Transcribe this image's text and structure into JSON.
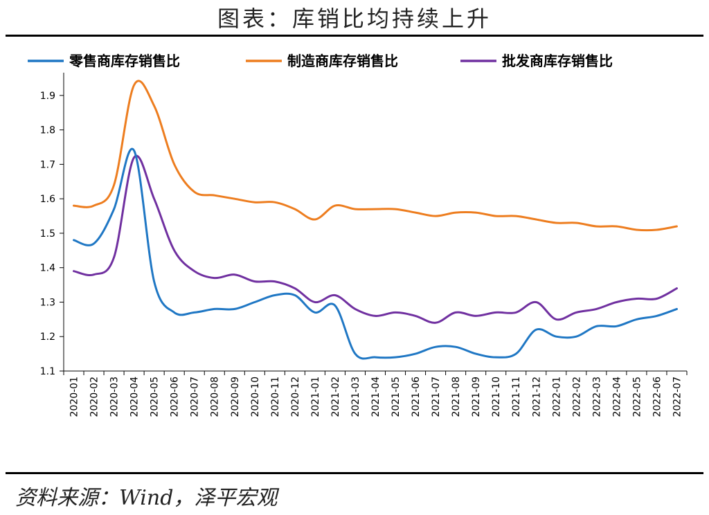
{
  "header": {
    "title": "图表：库销比均持续上升"
  },
  "footer": {
    "source": "资料来源：Wind，泽平宏观"
  },
  "colors": {
    "retail": "#1f77c4",
    "manufacturing": "#ed7d1f",
    "wholesale": "#7030a0"
  },
  "chart_data": {
    "type": "line",
    "title": "图表：库销比均持续上升",
    "xlabel": "",
    "ylabel": "",
    "ylim": [
      1.1,
      1.95
    ],
    "yticks": [
      "1.1",
      "1.2",
      "1.3",
      "1.4",
      "1.5",
      "1.6",
      "1.7",
      "1.8",
      "1.9"
    ],
    "legend_position": "top",
    "grid": false,
    "categories": [
      "2020-01",
      "2020-02",
      "2020-03",
      "2020-04",
      "2020-05",
      "2020-06",
      "2020-07",
      "2020-08",
      "2020-09",
      "2020-10",
      "2020-11",
      "2020-12",
      "2021-01",
      "2021-02",
      "2021-03",
      "2021-04",
      "2021-05",
      "2021-06",
      "2021-07",
      "2021-08",
      "2021-09",
      "2021-10",
      "2021-11",
      "2021-12",
      "2022-01",
      "2022-02",
      "2022-03",
      "2022-04",
      "2022-05",
      "2022-06",
      "2022-07"
    ],
    "series": [
      {
        "name": "零售商库存销售比",
        "color_key": "retail",
        "values": [
          1.48,
          1.47,
          1.57,
          1.74,
          1.36,
          1.27,
          1.27,
          1.28,
          1.28,
          1.3,
          1.32,
          1.32,
          1.27,
          1.29,
          1.15,
          1.14,
          1.14,
          1.15,
          1.17,
          1.17,
          1.15,
          1.14,
          1.15,
          1.22,
          1.2,
          1.2,
          1.23,
          1.23,
          1.25,
          1.26,
          1.28
        ]
      },
      {
        "name": "制造商库存销售比",
        "color_key": "manufacturing",
        "values": [
          1.58,
          1.58,
          1.64,
          1.93,
          1.87,
          1.7,
          1.62,
          1.61,
          1.6,
          1.59,
          1.59,
          1.57,
          1.54,
          1.58,
          1.57,
          1.57,
          1.57,
          1.56,
          1.55,
          1.56,
          1.56,
          1.55,
          1.55,
          1.54,
          1.53,
          1.53,
          1.52,
          1.52,
          1.51,
          1.51,
          1.52
        ]
      },
      {
        "name": "批发商库存销售比",
        "color_key": "wholesale",
        "values": [
          1.39,
          1.38,
          1.43,
          1.72,
          1.6,
          1.45,
          1.39,
          1.37,
          1.38,
          1.36,
          1.36,
          1.34,
          1.3,
          1.32,
          1.28,
          1.26,
          1.27,
          1.26,
          1.24,
          1.27,
          1.26,
          1.27,
          1.27,
          1.3,
          1.25,
          1.27,
          1.28,
          1.3,
          1.31,
          1.31,
          1.34
        ]
      }
    ]
  }
}
